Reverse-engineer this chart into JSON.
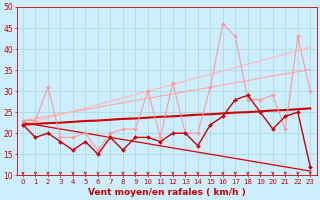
{
  "background_color": "#cceeff",
  "grid_color": "#aadddd",
  "xlabel": "Vent moyen/en rafales ( km/h )",
  "x_values": [
    0,
    1,
    2,
    3,
    4,
    5,
    6,
    7,
    8,
    9,
    10,
    11,
    12,
    13,
    14,
    15,
    16,
    17,
    18,
    19,
    20,
    21,
    22,
    23
  ],
  "ylim": [
    10,
    50
  ],
  "xlim": [
    -0.5,
    23.5
  ],
  "yticks": [
    10,
    15,
    20,
    25,
    30,
    35,
    40,
    45,
    50
  ],
  "series": [
    {
      "name": "upper_trend_light",
      "color": "#ffaaaa",
      "linewidth": 0.9,
      "marker": null,
      "values": [
        23.0,
        23.5,
        24.0,
        24.6,
        25.1,
        25.6,
        26.2,
        26.7,
        27.2,
        27.8,
        28.3,
        28.8,
        29.3,
        29.9,
        30.4,
        30.9,
        31.5,
        32.0,
        32.5,
        33.1,
        33.6,
        34.1,
        34.6,
        35.2
      ]
    },
    {
      "name": "upper_trend_light2",
      "color": "#ffbbbb",
      "linewidth": 0.9,
      "marker": null,
      "values": [
        22.0,
        22.8,
        23.6,
        24.4,
        25.2,
        26.0,
        26.8,
        27.6,
        28.4,
        29.2,
        30.0,
        30.8,
        31.6,
        32.4,
        33.2,
        34.0,
        34.8,
        35.6,
        36.4,
        37.2,
        38.0,
        38.8,
        39.6,
        40.4
      ]
    },
    {
      "name": "zigzag_light_markers",
      "color": "#ff9999",
      "linewidth": 0.8,
      "marker": "D",
      "markersize": 2.0,
      "values": [
        23,
        23,
        31,
        19,
        19,
        20,
        16,
        20,
        21,
        21,
        30,
        19,
        32,
        20,
        20,
        31,
        46,
        43,
        28,
        28,
        29,
        21,
        43,
        30
      ]
    },
    {
      "name": "lower_trend_dark",
      "color": "#dd0000",
      "linewidth": 0.9,
      "marker": null,
      "values": [
        22.5,
        22.0,
        21.5,
        21.0,
        20.5,
        20.0,
        19.5,
        19.0,
        18.5,
        18.0,
        17.5,
        17.0,
        16.5,
        16.0,
        15.5,
        15.0,
        14.5,
        14.0,
        13.5,
        13.0,
        12.5,
        12.0,
        11.5,
        11.0
      ]
    },
    {
      "name": "middle_trend_dark",
      "color": "#cc0000",
      "linewidth": 1.5,
      "marker": null,
      "values": [
        22.0,
        22.2,
        22.4,
        22.5,
        22.7,
        22.9,
        23.0,
        23.2,
        23.4,
        23.5,
        23.7,
        23.9,
        24.0,
        24.2,
        24.4,
        24.5,
        24.7,
        24.9,
        25.0,
        25.2,
        25.4,
        25.5,
        25.7,
        25.9
      ]
    },
    {
      "name": "zigzag_dark_markers",
      "color": "#cc0000",
      "linewidth": 1.0,
      "marker": "D",
      "markersize": 2.0,
      "values": [
        22,
        19,
        20,
        18,
        16,
        18,
        15,
        19,
        16,
        19,
        19,
        18,
        20,
        20,
        17,
        22,
        24,
        28,
        29,
        25,
        21,
        24,
        25,
        12
      ]
    }
  ],
  "xtick_fontsize": 5.0,
  "ytick_fontsize": 5.5,
  "xlabel_fontsize": 6.5,
  "tick_color": "#cc0000",
  "xlabel_color": "#cc0000"
}
